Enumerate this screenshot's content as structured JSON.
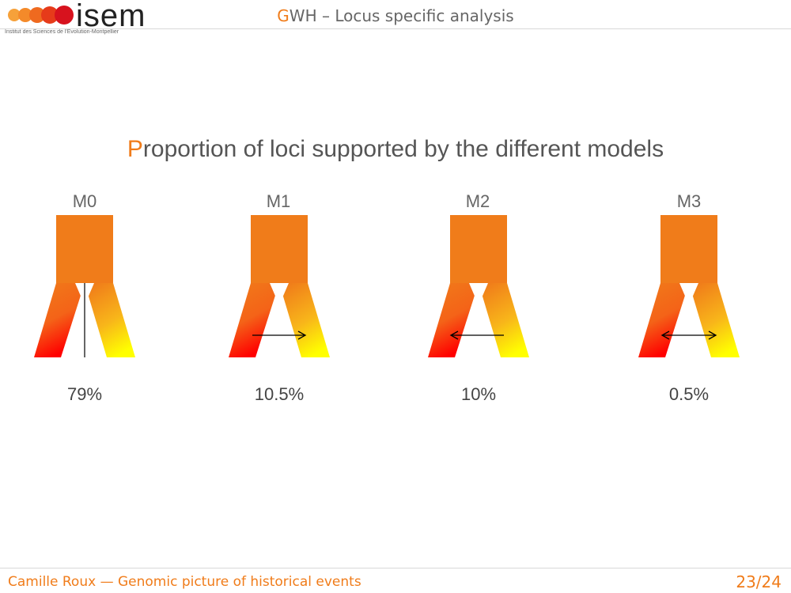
{
  "header": {
    "logo_text": "isem",
    "logo_subtitle": "Institut des Sciences de l'Evolution-Montpellier",
    "title_initial": "G",
    "title_rest": "WH – Locus specific analysis"
  },
  "slide": {
    "title_initial": "P",
    "title_rest": "roportion of loci supported by the different models"
  },
  "models": [
    {
      "label": "M0",
      "percent": "79%",
      "arrow": "none"
    },
    {
      "label": "M1",
      "percent": "10.5%",
      "arrow": "right"
    },
    {
      "label": "M2",
      "percent": "10%",
      "arrow": "left"
    },
    {
      "label": "M3",
      "percent": "0.5%",
      "arrow": "both"
    }
  ],
  "colors": {
    "accent": "#f07c1a",
    "trunk": "#f07c1a",
    "left_branch_tip": "#ff0000",
    "right_branch_tip": "#ffff00"
  },
  "footer": {
    "left": "Camille Roux — Genomic picture of historical events",
    "page": "23/24"
  }
}
